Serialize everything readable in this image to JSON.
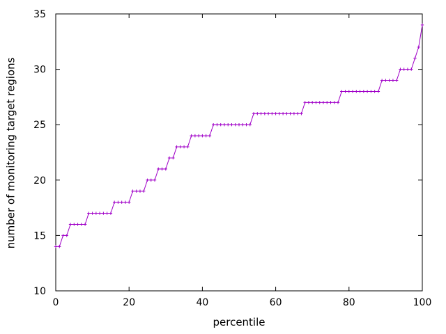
{
  "chart_data": {
    "type": "line",
    "style": "linespoints",
    "marker": "plus",
    "title": "",
    "xlabel": "percentile",
    "ylabel": "number of monitoring target regions",
    "xlim": [
      0,
      100
    ],
    "ylim": [
      10,
      35
    ],
    "xticks": [
      0,
      20,
      40,
      60,
      80,
      100
    ],
    "yticks": [
      10,
      15,
      20,
      25,
      30,
      35
    ],
    "grid": false,
    "legend": "none",
    "x_min": 0,
    "x_max": 100,
    "x_step": 1,
    "values_by_percentile": [
      14,
      14,
      15,
      15,
      16,
      16,
      16,
      16,
      16,
      17,
      17,
      17,
      17,
      17,
      17,
      17,
      18,
      18,
      18,
      18,
      18,
      19,
      19,
      19,
      19,
      20,
      20,
      20,
      21,
      21,
      21,
      22,
      22,
      23,
      23,
      23,
      23,
      24,
      24,
      24,
      24,
      24,
      24,
      25,
      25,
      25,
      25,
      25,
      25,
      25,
      25,
      25,
      25,
      25,
      26,
      26,
      26,
      26,
      26,
      26,
      26,
      26,
      26,
      26,
      26,
      26,
      26,
      26,
      27,
      27,
      27,
      27,
      27,
      27,
      27,
      27,
      27,
      27,
      28,
      28,
      28,
      28,
      28,
      28,
      28,
      28,
      28,
      28,
      28,
      29,
      29,
      29,
      29,
      29,
      30,
      30,
      30,
      30,
      31,
      32,
      34
    ],
    "colors": {
      "series": "#A000C8",
      "axis": "#000000",
      "text": "#000000",
      "background": "#ffffff"
    }
  }
}
